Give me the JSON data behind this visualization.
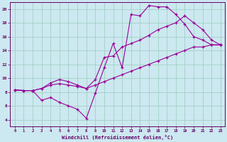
{
  "xlabel": "Windchill (Refroidissement éolien,°C)",
  "bg_color": "#cce8f0",
  "grid_color": "#99ccbb",
  "line_color": "#990099",
  "xlim_min": -0.5,
  "xlim_max": 23.5,
  "ylim_min": 3,
  "ylim_max": 21,
  "yticks": [
    4,
    6,
    8,
    10,
    12,
    14,
    16,
    18,
    20
  ],
  "line1_x": [
    0,
    1,
    2,
    3,
    4,
    5,
    6,
    7,
    8,
    9,
    10,
    11,
    12,
    13,
    14,
    15,
    16,
    17,
    18,
    19,
    20,
    21,
    22,
    23
  ],
  "line1_y": [
    8.3,
    8.2,
    8.2,
    6.8,
    7.2,
    6.5,
    6.0,
    5.5,
    4.2,
    7.8,
    11.5,
    15.0,
    11.5,
    19.2,
    19.0,
    20.5,
    20.3,
    20.3,
    19.2,
    17.8,
    16.0,
    15.5,
    14.8,
    14.8
  ],
  "line2_x": [
    0,
    1,
    2,
    3,
    4,
    5,
    6,
    7,
    8,
    9,
    10,
    11,
    12,
    13,
    14,
    15,
    16,
    17,
    18,
    19,
    20,
    21,
    22,
    23
  ],
  "line2_y": [
    8.3,
    8.2,
    8.2,
    8.5,
    9.3,
    9.8,
    9.5,
    9.0,
    8.5,
    9.8,
    13.0,
    13.2,
    14.5,
    15.0,
    15.5,
    16.2,
    17.0,
    17.5,
    18.0,
    19.0,
    18.0,
    17.0,
    15.5,
    14.8
  ],
  "line3_x": [
    0,
    1,
    2,
    3,
    4,
    5,
    6,
    7,
    8,
    9,
    10,
    11,
    12,
    13,
    14,
    15,
    16,
    17,
    18,
    19,
    20,
    21,
    22,
    23
  ],
  "line3_y": [
    8.3,
    8.2,
    8.2,
    8.5,
    9.0,
    9.2,
    9.0,
    8.8,
    8.5,
    9.0,
    9.5,
    10.0,
    10.5,
    11.0,
    11.5,
    12.0,
    12.5,
    13.0,
    13.5,
    14.0,
    14.5,
    14.5,
    14.8,
    14.8
  ]
}
